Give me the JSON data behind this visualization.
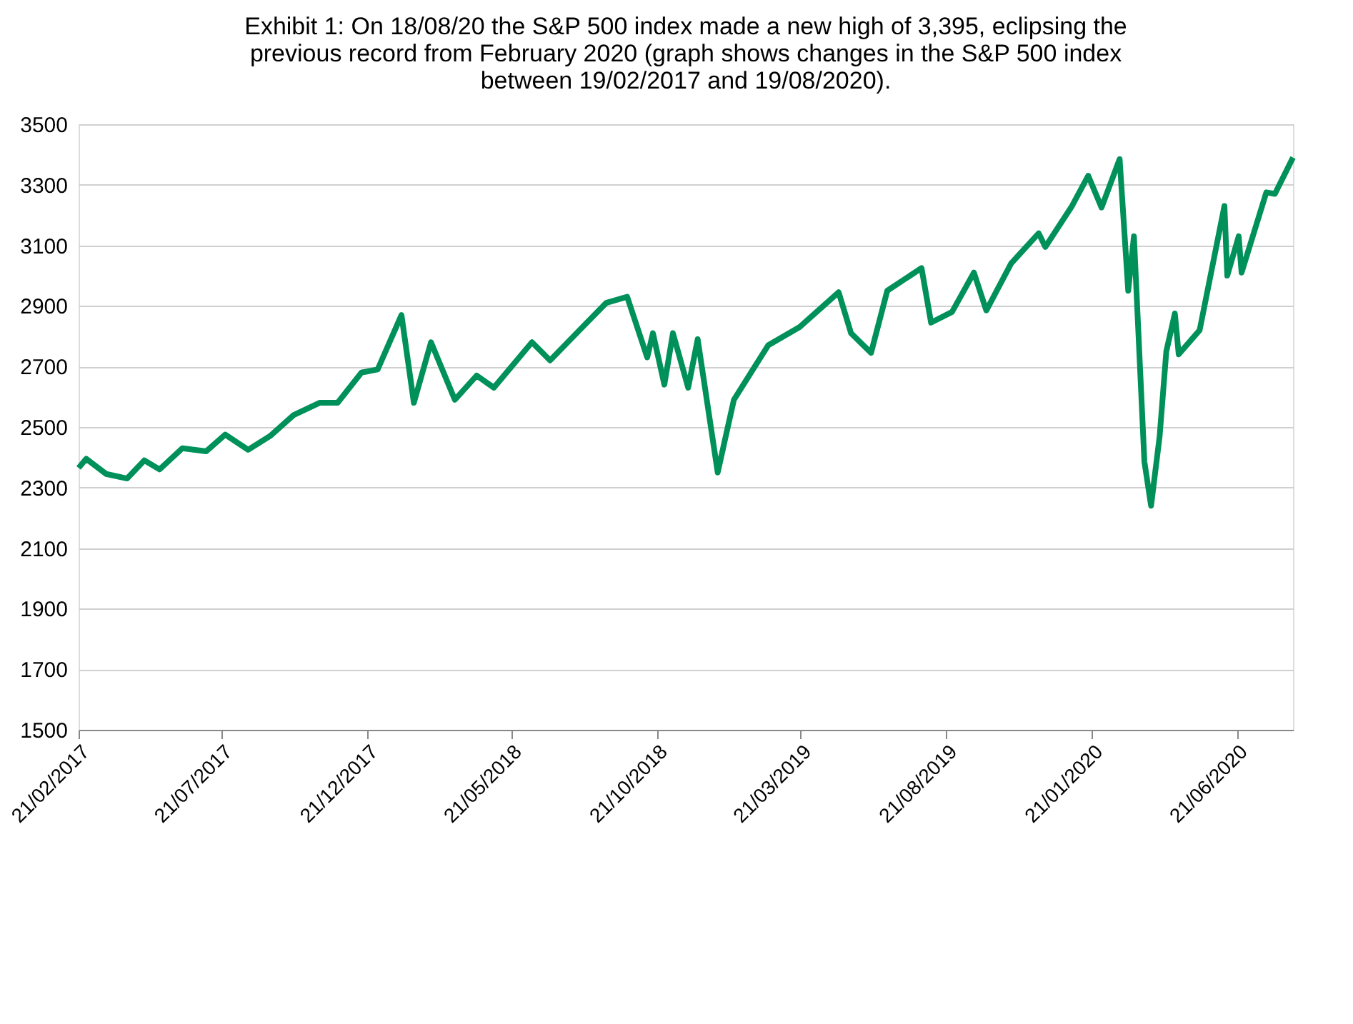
{
  "chart_data": {
    "type": "line",
    "title": "Exhibit 1: On 18/08/20 the S&P 500 index made a new high of 3,395, eclipsing the previous record from February 2020 (graph shows changes in the S&P 500 index between 19/02/2017 and 19/08/2020).",
    "x": [
      "2017-02-21",
      "2017-03-01",
      "2017-03-22",
      "2017-04-13",
      "2017-05-01",
      "2017-05-17",
      "2017-06-10",
      "2017-07-05",
      "2017-07-25",
      "2017-08-18",
      "2017-09-10",
      "2017-10-05",
      "2017-11-01",
      "2017-11-20",
      "2017-12-15",
      "2018-01-01",
      "2018-01-26",
      "2018-02-08",
      "2018-02-26",
      "2018-03-23",
      "2018-04-15",
      "2018-05-03",
      "2018-06-12",
      "2018-07-01",
      "2018-08-01",
      "2018-08-29",
      "2018-09-20",
      "2018-10-11",
      "2018-10-17",
      "2018-10-29",
      "2018-11-07",
      "2018-11-23",
      "2018-12-03",
      "2018-12-24",
      "2019-01-10",
      "2019-02-15",
      "2019-03-20",
      "2019-04-30",
      "2019-05-13",
      "2019-06-03",
      "2019-06-20",
      "2019-07-26",
      "2019-08-05",
      "2019-08-27",
      "2019-09-19",
      "2019-10-02",
      "2019-10-28",
      "2019-11-26",
      "2019-12-03",
      "2019-12-31",
      "2020-01-17",
      "2020-01-31",
      "2020-02-19",
      "2020-02-28",
      "2020-03-05",
      "2020-03-16",
      "2020-03-23",
      "2020-04-01",
      "2020-04-08",
      "2020-04-17",
      "2020-04-21",
      "2020-05-13",
      "2020-06-08",
      "2020-06-11",
      "2020-06-23",
      "2020-06-26",
      "2020-07-22",
      "2020-07-31",
      "2020-08-19"
    ],
    "series": [
      {
        "color": "#00915a",
        "values": [
          2365,
          2395,
          2345,
          2330,
          2390,
          2360,
          2430,
          2420,
          2475,
          2425,
          2470,
          2540,
          2580,
          2580,
          2680,
          2690,
          2870,
          2580,
          2780,
          2590,
          2670,
          2630,
          2780,
          2720,
          2820,
          2910,
          2930,
          2730,
          2810,
          2640,
          2810,
          2630,
          2790,
          2350,
          2590,
          2770,
          2830,
          2945,
          2810,
          2745,
          2950,
          3025,
          2845,
          2880,
          3010,
          2885,
          3040,
          3140,
          3095,
          3230,
          3330,
          3225,
          3385,
          2950,
          3130,
          2385,
          2240,
          2470,
          2750,
          2875,
          2740,
          2820,
          3230,
          3000,
          3130,
          3010,
          3275,
          3270,
          3390
        ]
      }
    ],
    "xlim": [
      "2017-02-21",
      "2020-08-19"
    ],
    "xticks": [
      {
        "value": "2017-02-21",
        "label": "21/02/2017"
      },
      {
        "value": "2017-07-21",
        "label": "21/07/2017"
      },
      {
        "value": "2017-12-21",
        "label": "21/12/2017"
      },
      {
        "value": "2018-05-21",
        "label": "21/05/2018"
      },
      {
        "value": "2018-10-21",
        "label": "21/10/2018"
      },
      {
        "value": "2019-03-21",
        "label": "21/03/2019"
      },
      {
        "value": "2019-08-21",
        "label": "21/08/2019"
      },
      {
        "value": "2020-01-21",
        "label": "21/01/2020"
      },
      {
        "value": "2020-06-21",
        "label": "21/06/2020"
      }
    ],
    "ylim": [
      1500,
      3500
    ],
    "yticks": [
      1500,
      1700,
      1900,
      2100,
      2300,
      2500,
      2700,
      2900,
      3100,
      3300,
      3500
    ],
    "grid": "y",
    "marker": "none",
    "line_style": "solid"
  }
}
